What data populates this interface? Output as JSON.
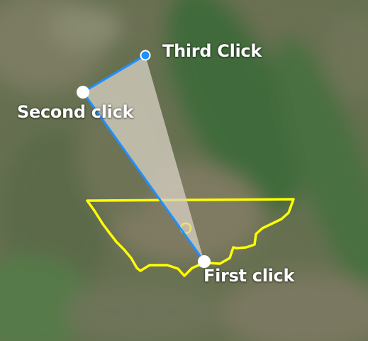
{
  "map": {
    "background": "satellite-imagery",
    "field_boundary_color": "#ffff00",
    "measure_line_color": "#1e90ff",
    "fill_color": "#d8d2c4"
  },
  "labels": {
    "first": "First click",
    "second": "Second click",
    "third": "Third Click"
  }
}
